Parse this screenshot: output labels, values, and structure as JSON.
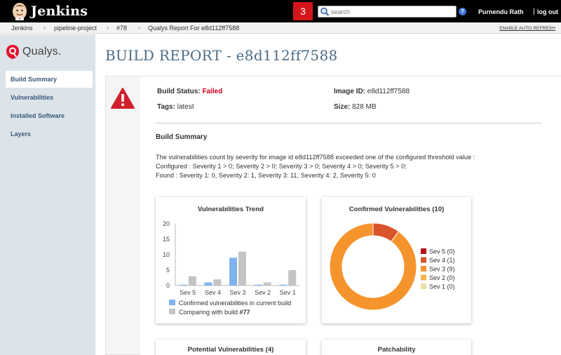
{
  "header": {
    "logo_text": "Jenkins",
    "notification_count": "3",
    "search_placeholder": "search",
    "help_label": "?",
    "user_name": "Purnendu Rath",
    "separator": "|",
    "logout": "log out"
  },
  "breadcrumb": {
    "items": [
      "Jenkins",
      "pipeline-project",
      "#78",
      "Qualys Report For e8d112ff7588"
    ],
    "auto_refresh": "ENABLE AUTO REFRESH"
  },
  "sidebar": {
    "brand": "Qualys.",
    "items": [
      {
        "label": "Build Summary"
      },
      {
        "label": "Vulnerabilities"
      },
      {
        "label": "Installed Software"
      },
      {
        "label": "Layers"
      }
    ]
  },
  "report": {
    "title": "BUILD REPORT - e8d112ff7588",
    "build_status_label": "Build Status:",
    "build_status_value": "Failed",
    "tags_label": "Tags:",
    "tags_value": "latest",
    "image_id_label": "Image ID:",
    "image_id_value": "e8d112ff7588",
    "size_label": "Size:",
    "size_value": "828 MB",
    "section_title": "Build Summary",
    "summary_lines": [
      "The vulnerabilities count by severity for image id e8d112ff7588 exceeded one of the configured threshold value :",
      "Configured : Severity 1 > 0; Severity 2 > 0; Severity 3 > 0; Severity 4 > 0; Severity 5 > 0;",
      "Found : Severity 1: 0, Severity 2: 1, Severity 3: 11, Severity 4: 2, Severity 5: 0"
    ]
  },
  "cards": {
    "trend_title": "Vulnerabilities Trend",
    "confirmed_title": "Confirmed Vulnerabilities (10)",
    "potential_title": "Potential Vulnerabilities (4)",
    "patchability_title": "Patchability"
  },
  "colors": {
    "failed": "#d0021b",
    "current_build": "#7fb3f0",
    "comparing_build": "#c4c4c4",
    "sev5": "#b0121a",
    "sev4": "#d9532b",
    "sev3": "#f5942d",
    "sev2": "#f7b54f",
    "sev1": "#ecdca8"
  },
  "chart_data": [
    {
      "type": "bar",
      "title": "Vulnerabilities Trend",
      "categories": [
        "Sev 5",
        "Sev 4",
        "Sev 3",
        "Sev 2",
        "Sev 1"
      ],
      "ylim": [
        0,
        20
      ],
      "yticks": [
        0,
        5,
        10,
        15,
        20
      ],
      "series": [
        {
          "name": "Confirmed vulnerabilities in current build",
          "color": "#7fb3f0",
          "values": [
            0,
            1,
            9,
            0,
            0
          ]
        },
        {
          "name": "Comparing with build #77",
          "color": "#c4c4c4",
          "values": [
            3,
            2,
            11,
            1,
            5
          ]
        }
      ],
      "legend_current": "Confirmed vulnerabilities in current build",
      "legend_compare_prefix": "Comparing with build ",
      "legend_compare_build": "#77",
      "legend_placement": "bottom"
    },
    {
      "type": "pie",
      "title": "Confirmed Vulnerabilities (10)",
      "donut": true,
      "slices": [
        {
          "label": "Sev 5 (0)",
          "value": 0,
          "color": "#b0121a"
        },
        {
          "label": "Sev 4 (1)",
          "value": 1,
          "color": "#d9532b"
        },
        {
          "label": "Sev 3 (9)",
          "value": 9,
          "color": "#f5942d"
        },
        {
          "label": "Sev 2 (0)",
          "value": 0,
          "color": "#f7b54f"
        },
        {
          "label": "Sev 1 (0)",
          "value": 0,
          "color": "#ecdca8"
        }
      ],
      "legend_placement": "right"
    }
  ]
}
